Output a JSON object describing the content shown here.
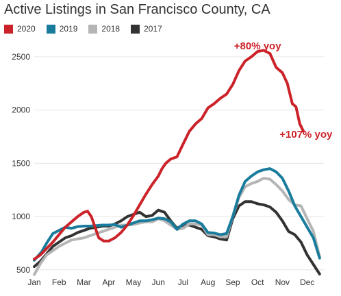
{
  "chart_data": {
    "type": "line",
    "title": "Active Listings in San Francisco County, CA",
    "xlabel": "",
    "ylabel": "",
    "ylim": [
      460,
      2660
    ],
    "xlim": [
      0,
      11.7
    ],
    "yticks": [
      500,
      1000,
      1500,
      2000,
      2500
    ],
    "month_labels": [
      "Jan",
      "Feb",
      "Mar",
      "Apr",
      "May",
      "Jun",
      "Jul",
      "Aug",
      "Sep",
      "Oct",
      "Nov",
      "Dec"
    ],
    "grid": true,
    "legend_position": "top-left",
    "annotations": [
      {
        "text": "+80% yoy",
        "x": 9.0,
        "y": 2570,
        "color": "#cc2229"
      },
      {
        "text": "+107% yoy",
        "x": 10.95,
        "y": 1740,
        "color": "#cc2229"
      }
    ],
    "series": [
      {
        "name": "2020",
        "color": "#cc2229",
        "x": [
          0,
          0.25,
          0.5,
          0.75,
          1.0,
          1.25,
          1.5,
          1.75,
          2.0,
          2.15,
          2.3,
          2.45,
          2.6,
          2.8,
          3.0,
          3.25,
          3.5,
          3.75,
          4.0,
          4.25,
          4.5,
          4.75,
          5.0,
          5.15,
          5.3,
          5.5,
          5.75,
          6.0,
          6.25,
          6.5,
          6.75,
          7.0,
          7.25,
          7.5,
          7.75,
          8.0,
          8.25,
          8.5,
          8.75,
          9.0,
          9.25,
          9.5,
          9.75,
          10.0,
          10.2,
          10.4,
          10.55,
          10.7,
          10.85
        ],
        "y": [
          600,
          640,
          700,
          760,
          830,
          900,
          950,
          1000,
          1040,
          1050,
          1000,
          900,
          800,
          770,
          770,
          800,
          850,
          920,
          1010,
          1110,
          1210,
          1300,
          1380,
          1450,
          1500,
          1540,
          1560,
          1680,
          1800,
          1870,
          1920,
          2020,
          2060,
          2110,
          2150,
          2240,
          2370,
          2460,
          2500,
          2550,
          2560,
          2530,
          2400,
          2350,
          2250,
          2060,
          2030,
          1870,
          1800
        ]
      },
      {
        "name": "2019",
        "color": "#1a7c9c",
        "x": [
          0,
          0.3,
          0.5,
          0.75,
          1.0,
          1.25,
          1.5,
          1.75,
          2.0,
          2.25,
          2.5,
          2.75,
          3.0,
          3.25,
          3.5,
          3.75,
          4.0,
          4.25,
          4.5,
          4.75,
          5.0,
          5.25,
          5.5,
          5.75,
          6.0,
          6.25,
          6.5,
          6.75,
          7.0,
          7.25,
          7.5,
          7.75,
          8.0,
          8.25,
          8.5,
          8.75,
          9.0,
          9.25,
          9.5,
          9.75,
          10.0,
          10.25,
          10.5,
          10.75,
          11.0,
          11.25,
          11.5
        ],
        "y": [
          590,
          670,
          750,
          840,
          870,
          900,
          890,
          905,
          910,
          910,
          915,
          920,
          920,
          925,
          900,
          920,
          940,
          960,
          960,
          970,
          985,
          980,
          950,
          880,
          930,
          960,
          960,
          930,
          850,
          845,
          830,
          840,
          1000,
          1200,
          1330,
          1380,
          1420,
          1440,
          1450,
          1420,
          1360,
          1240,
          1100,
          1000,
          900,
          800,
          610
        ]
      },
      {
        "name": "2018",
        "color": "#b5b5b5",
        "x": [
          0,
          0.25,
          0.5,
          0.75,
          1.0,
          1.25,
          1.5,
          1.75,
          2.0,
          2.25,
          2.5,
          2.75,
          3.0,
          3.25,
          3.5,
          3.75,
          4.0,
          4.25,
          4.5,
          4.75,
          5.0,
          5.25,
          5.5,
          5.75,
          6.0,
          6.25,
          6.5,
          6.75,
          7.0,
          7.25,
          7.5,
          7.75,
          8.0,
          8.25,
          8.5,
          8.75,
          9.0,
          9.25,
          9.5,
          9.75,
          10.0,
          10.25,
          10.5,
          10.75,
          11.0,
          11.25,
          11.5
        ],
        "y": [
          455,
          560,
          640,
          680,
          720,
          750,
          780,
          790,
          800,
          820,
          840,
          860,
          880,
          900,
          920,
          920,
          925,
          940,
          950,
          950,
          980,
          960,
          920,
          880,
          890,
          930,
          930,
          920,
          830,
          830,
          810,
          810,
          1000,
          1180,
          1280,
          1310,
          1330,
          1360,
          1350,
          1300,
          1240,
          1160,
          1110,
          1100,
          980,
          860,
          620
        ]
      },
      {
        "name": "2017",
        "color": "#333333",
        "x": [
          0,
          0.25,
          0.5,
          0.75,
          1.0,
          1.25,
          1.5,
          1.75,
          2.0,
          2.25,
          2.5,
          2.75,
          3.0,
          3.25,
          3.5,
          3.75,
          4.0,
          4.25,
          4.5,
          4.75,
          5.0,
          5.25,
          5.5,
          5.75,
          6.0,
          6.25,
          6.5,
          6.75,
          7.0,
          7.25,
          7.5,
          7.75,
          8.0,
          8.25,
          8.5,
          8.75,
          9.0,
          9.25,
          9.5,
          9.75,
          10.0,
          10.25,
          10.5,
          10.75,
          11.0,
          11.25,
          11.5
        ],
        "y": [
          530,
          580,
          650,
          720,
          760,
          800,
          820,
          850,
          870,
          890,
          900,
          910,
          910,
          930,
          960,
          1000,
          1020,
          1040,
          1000,
          1010,
          1060,
          1040,
          960,
          890,
          920,
          920,
          900,
          880,
          820,
          810,
          790,
          780,
          980,
          1100,
          1140,
          1140,
          1120,
          1110,
          1090,
          1040,
          960,
          860,
          830,
          760,
          640,
          550,
          460
        ]
      }
    ]
  }
}
